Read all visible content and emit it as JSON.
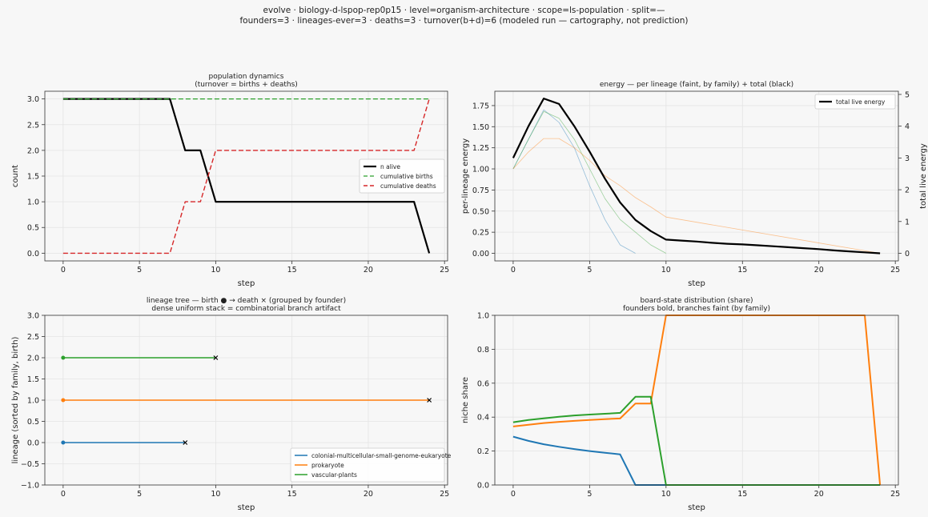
{
  "suptitle": {
    "line1": "evolve · biology-d-lspop-rep0p15 · level=organism-architecture · scope=ls-population · split=—",
    "line2": "founders=3 · lineages-ever=3 · deaths=3 · turnover(b+d)=6   (modeled run — cartography, not prediction)"
  },
  "colors": {
    "blue": "#1f77b4",
    "orange": "#ff7f0e",
    "green": "#2ca02c",
    "red": "#d62728",
    "black": "#000000"
  },
  "chart_data": [
    {
      "id": "population",
      "type": "line",
      "title": "population dynamics",
      "subtitle": "(turnover = births + deaths)",
      "xlabel": "step",
      "ylabel": "count",
      "xlim": [
        -1.2,
        25.2
      ],
      "ylim": [
        -0.15,
        3.15
      ],
      "xticks": [
        0,
        5,
        10,
        15,
        20,
        25
      ],
      "yticks": [
        0.0,
        0.5,
        1.0,
        1.5,
        2.0,
        2.5,
        3.0
      ],
      "ytick_labels": [
        "0.0",
        "0.5",
        "1.0",
        "1.5",
        "2.0",
        "2.5",
        "3.0"
      ],
      "grid": true,
      "legend": "center-right",
      "series": [
        {
          "name": "n alive",
          "color": "#000000",
          "style": "solid",
          "width": 2.2,
          "x": [
            0,
            7,
            8,
            9,
            10,
            23,
            24
          ],
          "y": [
            3,
            3,
            2,
            2,
            1,
            1,
            0
          ]
        },
        {
          "name": "cumulative births",
          "color": "#2ca02c",
          "style": "dashed",
          "width": 1.3,
          "x": [
            0,
            24
          ],
          "y": [
            3,
            3
          ]
        },
        {
          "name": "cumulative deaths",
          "color": "#d62728",
          "style": "dashed",
          "width": 1.4,
          "x": [
            0,
            7,
            8,
            9,
            10,
            23,
            24
          ],
          "y": [
            0,
            0,
            1,
            1,
            2,
            2,
            3
          ]
        }
      ]
    },
    {
      "id": "energy",
      "type": "line",
      "title": "energy — per lineage (faint, by family) + total (black)",
      "xlabel": "step",
      "ylabel": "per-lineage energy",
      "y2label": "total live energy",
      "xlim": [
        -1.2,
        25.2
      ],
      "ylim": [
        -0.09,
        1.92
      ],
      "y2lim": [
        -0.24,
        5.1
      ],
      "xticks": [
        0,
        5,
        10,
        15,
        20,
        25
      ],
      "yticks": [
        0.0,
        0.25,
        0.5,
        0.75,
        1.0,
        1.25,
        1.5,
        1.75
      ],
      "ytick_labels": [
        "0.00",
        "0.25",
        "0.50",
        "0.75",
        "1.00",
        "1.25",
        "1.50",
        "1.75"
      ],
      "y2ticks": [
        0,
        1,
        2,
        3,
        4,
        5
      ],
      "grid": true,
      "legend": "top-right",
      "series": [
        {
          "name": "",
          "axis": "left",
          "color": "#1f77b4",
          "faint": true,
          "x": [
            0,
            1,
            2,
            3,
            4,
            5,
            6,
            7,
            8
          ],
          "y": [
            1.0,
            1.35,
            1.7,
            1.55,
            1.25,
            0.8,
            0.4,
            0.1,
            0.0
          ]
        },
        {
          "name": "",
          "axis": "left",
          "color": "#2ca02c",
          "faint": true,
          "x": [
            0,
            1,
            2,
            3,
            4,
            5,
            6,
            7,
            8,
            9,
            10
          ],
          "y": [
            1.0,
            1.35,
            1.68,
            1.6,
            1.35,
            1.0,
            0.65,
            0.4,
            0.25,
            0.1,
            0.0
          ]
        },
        {
          "name": "",
          "axis": "left",
          "color": "#ff7f0e",
          "faint": true,
          "x": [
            0,
            1,
            2,
            3,
            4,
            5,
            6,
            7,
            8,
            9,
            10,
            24
          ],
          "y": [
            1.0,
            1.2,
            1.36,
            1.36,
            1.25,
            1.1,
            0.92,
            0.8,
            0.66,
            0.55,
            0.43,
            0.0
          ]
        },
        {
          "name": "total live energy",
          "axis": "right",
          "color": "#000000",
          "width": 2.2,
          "x": [
            0,
            1,
            2,
            3,
            4,
            5,
            6,
            7,
            8,
            9,
            10,
            11,
            12,
            13,
            14,
            15,
            16,
            17,
            18,
            19,
            20,
            21,
            22,
            23,
            24
          ],
          "y": [
            3.0,
            4.0,
            4.87,
            4.7,
            4.0,
            3.2,
            2.35,
            1.6,
            1.05,
            0.7,
            0.43,
            0.4,
            0.37,
            0.33,
            0.3,
            0.28,
            0.25,
            0.22,
            0.19,
            0.16,
            0.13,
            0.09,
            0.06,
            0.03,
            0.0
          ]
        }
      ]
    },
    {
      "id": "lineage-tree",
      "type": "line",
      "title": "lineage tree — birth ● → death ×  (grouped by founder)",
      "subtitle": "dense uniform stack = combinatorial branch artifact",
      "xlabel": "step",
      "ylabel": "lineage (sorted by family, birth)",
      "xlim": [
        -1.2,
        25.2
      ],
      "ylim": [
        -1.0,
        3.0
      ],
      "xticks": [
        0,
        5,
        10,
        15,
        20,
        25
      ],
      "yticks": [
        -1.0,
        -0.5,
        0.0,
        0.5,
        1.0,
        1.5,
        2.0,
        2.5,
        3.0
      ],
      "ytick_labels": [
        "−1.0",
        "−0.5",
        "0.0",
        "0.5",
        "1.0",
        "1.5",
        "2.0",
        "2.5",
        "3.0"
      ],
      "grid": true,
      "legend": "bottom-right",
      "series": [
        {
          "name": "colonial-multicellular-small-genome-eukaryote",
          "color": "#1f77b4",
          "lineage": 0,
          "birth": 0,
          "death": 8
        },
        {
          "name": "prokaryote",
          "color": "#ff7f0e",
          "lineage": 1,
          "birth": 0,
          "death": 24
        },
        {
          "name": "vascular-plants",
          "color": "#2ca02c",
          "lineage": 2,
          "birth": 0,
          "death": 10
        }
      ]
    },
    {
      "id": "board-state",
      "type": "line",
      "title": "board-state distribution (share)",
      "subtitle": "founders bold, branches faint (by family)",
      "xlabel": "step",
      "ylabel": "niche share",
      "xlim": [
        -1.2,
        25.2
      ],
      "ylim": [
        0.0,
        1.0
      ],
      "xticks": [
        0,
        5,
        10,
        15,
        20,
        25
      ],
      "yticks": [
        0.0,
        0.2,
        0.4,
        0.6,
        0.8,
        1.0
      ],
      "ytick_labels": [
        "0.0",
        "0.2",
        "0.4",
        "0.6",
        "0.8",
        "1.0"
      ],
      "grid": true,
      "series": [
        {
          "name": "",
          "color": "#1f77b4",
          "width": 2.0,
          "x": [
            0,
            1,
            2,
            3,
            4,
            5,
            6,
            7,
            8,
            24
          ],
          "y": [
            0.285,
            0.26,
            0.24,
            0.225,
            0.212,
            0.2,
            0.19,
            0.18,
            0.0,
            0.0
          ]
        },
        {
          "name": "",
          "color": "#ff7f0e",
          "width": 2.0,
          "x": [
            0,
            1,
            2,
            3,
            4,
            5,
            6,
            7,
            8,
            9,
            10,
            23,
            24
          ],
          "y": [
            0.345,
            0.355,
            0.365,
            0.372,
            0.378,
            0.383,
            0.388,
            0.392,
            0.48,
            0.48,
            1.0,
            1.0,
            0.0
          ]
        },
        {
          "name": "",
          "color": "#2ca02c",
          "width": 2.0,
          "x": [
            0,
            1,
            2,
            3,
            4,
            5,
            6,
            7,
            8,
            9,
            10,
            24
          ],
          "y": [
            0.37,
            0.383,
            0.393,
            0.402,
            0.41,
            0.415,
            0.42,
            0.425,
            0.52,
            0.52,
            0.0,
            0.0
          ]
        }
      ]
    }
  ]
}
